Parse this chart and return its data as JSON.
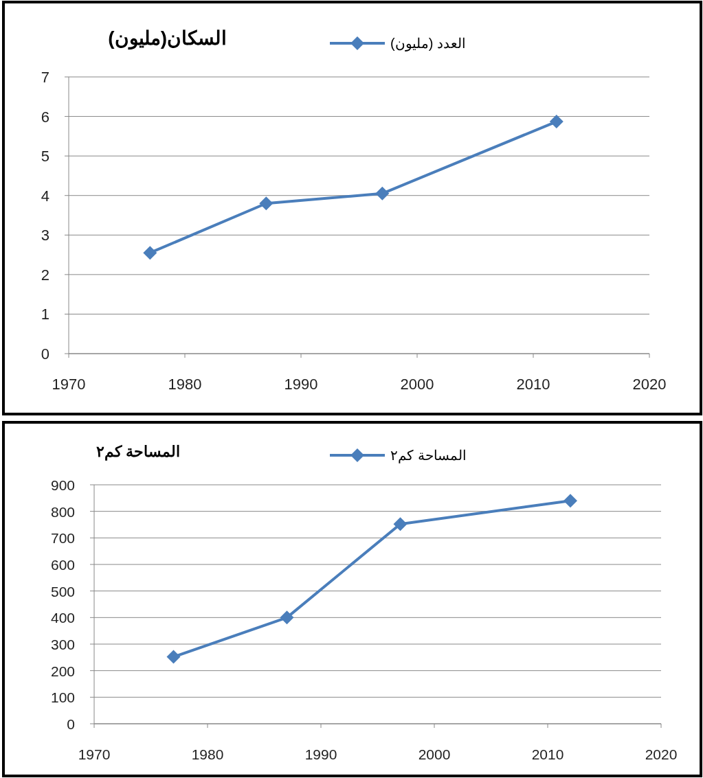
{
  "chart_data": [
    {
      "type": "line",
      "title": "السكان(مليون)",
      "x": [
        1977,
        1987,
        1997,
        2012
      ],
      "series": [
        {
          "name": "العدد (مليون)",
          "color": "#4a7ebb",
          "values": [
            2.55,
            3.8,
            4.05,
            5.87
          ]
        }
      ],
      "xlim": [
        1970,
        2020
      ],
      "xticks": [
        1970,
        1980,
        1990,
        2000,
        2010,
        2020
      ],
      "ylim": [
        0,
        7
      ],
      "yticks": [
        0,
        1,
        2,
        3,
        4,
        5,
        6,
        7
      ],
      "grid": "y",
      "legend": "top",
      "marker": "diamond",
      "line_style": "solid"
    },
    {
      "type": "line",
      "title": "المساحة كم٢",
      "x": [
        1977,
        1987,
        1997,
        2012
      ],
      "series": [
        {
          "name": "المساحة كم٢",
          "color": "#4a7ebb",
          "values": [
            252,
            400,
            752,
            840
          ]
        }
      ],
      "xlim": [
        1970,
        2020
      ],
      "xticks": [
        1970,
        1980,
        1990,
        2000,
        2010,
        2020
      ],
      "ylim": [
        0,
        900
      ],
      "yticks": [
        0,
        100,
        200,
        300,
        400,
        500,
        600,
        700,
        800,
        900
      ],
      "grid": "y",
      "legend": "top",
      "marker": "diamond",
      "line_style": "solid"
    }
  ]
}
